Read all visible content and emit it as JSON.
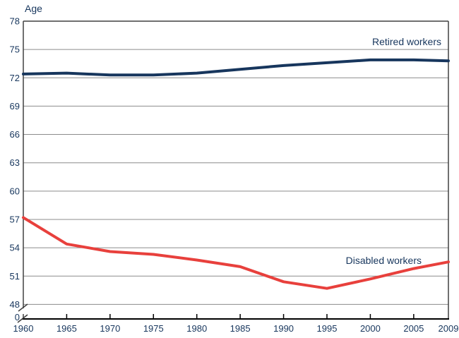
{
  "chart_data": {
    "type": "line",
    "title": "",
    "ylabel": "Age",
    "xlabel": "",
    "xlim": [
      1960,
      2009
    ],
    "ylim": [
      48,
      78
    ],
    "y_axis_break": true,
    "broken_axis_zero_label": "0",
    "y_ticks": [
      78,
      75,
      72,
      69,
      66,
      63,
      60,
      57,
      54,
      51,
      48
    ],
    "x_ticks": [
      1960,
      1965,
      1970,
      1975,
      1980,
      1985,
      1990,
      1995,
      2000,
      2005,
      2009
    ],
    "x": [
      1960,
      1965,
      1970,
      1975,
      1980,
      1985,
      1990,
      1995,
      2000,
      2005,
      2009
    ],
    "grid": "horizontal",
    "legend_position": "inline-labels",
    "series": [
      {
        "name": "Retired workers",
        "color": "#17365D",
        "values": [
          72.4,
          72.5,
          72.3,
          72.3,
          72.5,
          72.9,
          73.3,
          73.6,
          73.9,
          73.9,
          73.8
        ]
      },
      {
        "name": "Disabled workers",
        "color": "#E8403C",
        "values": [
          57.2,
          54.4,
          53.6,
          53.3,
          52.7,
          52.0,
          50.4,
          49.7,
          50.7,
          51.8,
          52.5
        ]
      }
    ],
    "colors": {
      "tick_label": "#17365D",
      "gridline": "#8C8C8C",
      "plot_border": "#404040",
      "x_axis": "#000000",
      "background": "#FFFFFF"
    }
  }
}
